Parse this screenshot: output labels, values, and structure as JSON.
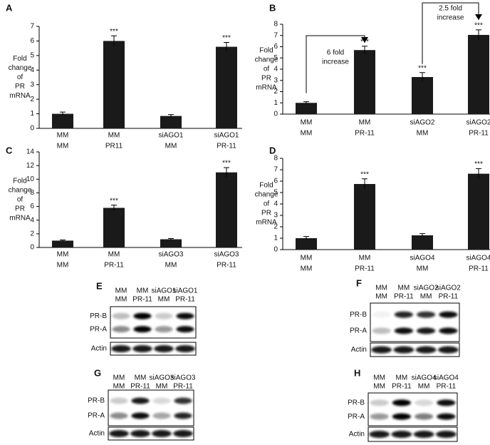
{
  "chart_data": [
    {
      "type": "bar",
      "panel": "A",
      "ylabel": [
        "Fold",
        "change",
        "of",
        "PR",
        "mRNA"
      ],
      "categories": [
        [
          "MM",
          "MM"
        ],
        [
          "MM",
          "PR11"
        ],
        [
          "siAGO1",
          "MM"
        ],
        [
          "siAGO1",
          "PR-11"
        ]
      ],
      "values": [
        1.0,
        6.0,
        0.85,
        5.6
      ],
      "errors": [
        0.12,
        0.35,
        0.1,
        0.3
      ],
      "significance": [
        null,
        "***",
        null,
        "***"
      ],
      "color": "#1a1a1a",
      "ylim": [
        0,
        7
      ],
      "yticks": [
        0,
        1,
        2,
        3,
        4,
        5,
        6,
        7
      ]
    },
    {
      "type": "bar",
      "panel": "B",
      "ylabel": [
        "Fold",
        "change",
        "of",
        "PR",
        "mRNA"
      ],
      "categories": [
        [
          "MM",
          "MM"
        ],
        [
          "MM",
          "PR-11"
        ],
        [
          "siAGO2",
          "MM"
        ],
        [
          "siAGO2",
          "PR-11"
        ]
      ],
      "values": [
        1.0,
        5.7,
        3.3,
        7.05
      ],
      "errors": [
        0.1,
        0.35,
        0.4,
        0.45
      ],
      "significance": [
        null,
        "***",
        "***",
        "***"
      ],
      "annotations": [
        [
          "6 fold",
          "increase"
        ],
        [
          "2.5 fold",
          "increase"
        ]
      ],
      "color": "#1a1a1a",
      "ylim": [
        0,
        8
      ],
      "yticks": [
        0,
        1,
        2,
        3,
        4,
        5,
        6,
        7,
        8
      ]
    },
    {
      "type": "bar",
      "panel": "C",
      "ylabel": [
        "Fold",
        "change",
        "of",
        "PR",
        "mRNA"
      ],
      "categories": [
        [
          "MM",
          "MM"
        ],
        [
          "MM",
          "PR-11"
        ],
        [
          "siAGO3",
          "MM"
        ],
        [
          "siAGO3",
          "PR-11"
        ]
      ],
      "values": [
        1.0,
        5.8,
        1.2,
        11.0
      ],
      "errors": [
        0.1,
        0.4,
        0.1,
        0.7
      ],
      "significance": [
        null,
        "***",
        null,
        "***"
      ],
      "color": "#1a1a1a",
      "ylim": [
        0,
        14
      ],
      "yticks": [
        0,
        2,
        4,
        6,
        8,
        10,
        12,
        14
      ]
    },
    {
      "type": "bar",
      "panel": "D",
      "ylabel": [
        "Fold",
        "change",
        "of",
        "PR",
        "mRNA"
      ],
      "categories": [
        [
          "MM",
          "MM"
        ],
        [
          "MM",
          "PR-11"
        ],
        [
          "siAGO4",
          "MM"
        ],
        [
          "siAGO4",
          "PR-11"
        ]
      ],
      "values": [
        1.0,
        5.75,
        1.25,
        6.65
      ],
      "errors": [
        0.15,
        0.45,
        0.15,
        0.45
      ],
      "significance": [
        null,
        "***",
        null,
        "***"
      ],
      "color": "#1a1a1a",
      "ylim": [
        0,
        8
      ],
      "yticks": [
        0,
        1,
        2,
        3,
        4,
        5,
        6,
        7,
        8
      ]
    }
  ],
  "blots": [
    {
      "panel": "E",
      "lanes": [
        [
          "MM",
          "MM"
        ],
        [
          "MM",
          "PR-11"
        ],
        [
          "siAGO1",
          "MM"
        ],
        [
          "siAGO1",
          "PR-11"
        ]
      ],
      "rows": [
        "PR-B",
        "PR-A",
        "Actin"
      ]
    },
    {
      "panel": "F",
      "lanes": [
        [
          "MM",
          "MM"
        ],
        [
          "MM",
          "PR-11"
        ],
        [
          "siAGO2",
          "MM"
        ],
        [
          "siAGO2",
          "PR-11"
        ]
      ],
      "rows": [
        "PR-B",
        "PR-A",
        "Actin"
      ]
    },
    {
      "panel": "G",
      "lanes": [
        [
          "MM",
          "MM"
        ],
        [
          "MM",
          "PR-11"
        ],
        [
          "siAGO3",
          "MM"
        ],
        [
          "siAGO3",
          "PR-11"
        ]
      ],
      "rows": [
        "PR-B",
        "PR-A",
        "Actin"
      ]
    },
    {
      "panel": "H",
      "lanes": [
        [
          "MM",
          "MM"
        ],
        [
          "MM",
          "PR-11"
        ],
        [
          "siAGO4",
          "MM"
        ],
        [
          "siAGO4",
          "PR-11"
        ]
      ],
      "rows": [
        "PR-B",
        "PR-A",
        "Actin"
      ]
    }
  ]
}
